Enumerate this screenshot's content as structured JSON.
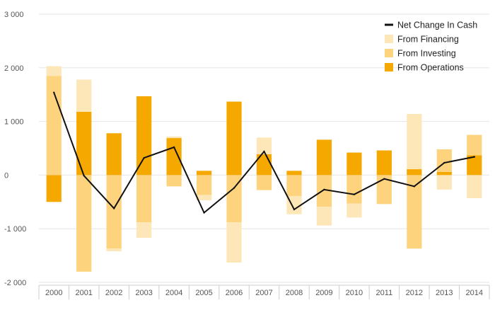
{
  "chart_data": {
    "type": "bar",
    "stacked": true,
    "categories": [
      "2000",
      "2001",
      "2002",
      "2003",
      "2004",
      "2005",
      "2006",
      "2007",
      "2008",
      "2009",
      "2010",
      "2011",
      "2012",
      "2013",
      "2014"
    ],
    "series": [
      {
        "name": "From Operations",
        "kind": "bar",
        "color": "#f5a800",
        "values": [
          -500,
          1180,
          780,
          1470,
          690,
          80,
          1370,
          390,
          80,
          660,
          420,
          460,
          110,
          60,
          370
        ]
      },
      {
        "name": "From Investing",
        "kind": "bar",
        "color": "#fdd37e",
        "values": [
          1850,
          -1800,
          -1370,
          -880,
          -210,
          -370,
          -880,
          -280,
          -390,
          -590,
          -530,
          -540,
          -1370,
          420,
          380
        ]
      },
      {
        "name": "From Financing",
        "kind": "bar",
        "color": "#fde7b8",
        "values": [
          180,
          600,
          -50,
          -290,
          30,
          -100,
          -750,
          310,
          -340,
          -350,
          -260,
          0,
          1030,
          -270,
          -430
        ]
      },
      {
        "name": "Net Change In Cash",
        "kind": "line",
        "color": "#111111",
        "values": [
          1540,
          -10,
          -620,
          320,
          520,
          -700,
          -240,
          440,
          -640,
          -270,
          -360,
          -70,
          -210,
          230,
          340
        ]
      }
    ],
    "legend_order": [
      "Net Change In Cash",
      "From Financing",
      "From Investing",
      "From Operations"
    ],
    "ylim": [
      -2000,
      3000
    ],
    "yticks": [
      3000,
      2000,
      1000,
      0,
      -1000,
      -2000
    ],
    "ytick_labels": [
      "3 000",
      "2 000",
      "1 000",
      "0",
      "-1 000",
      "-2 000"
    ],
    "grid": true,
    "legend_position": "top-right",
    "title": "",
    "xlabel": "",
    "ylabel": ""
  }
}
